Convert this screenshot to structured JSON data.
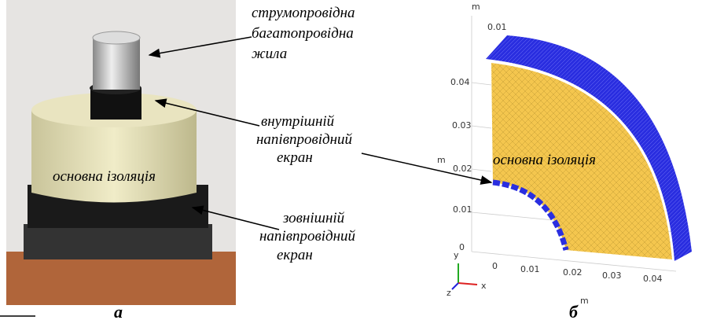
{
  "panel_a": {
    "label": "а",
    "conductor": [
      "струмопровідна",
      "багатопровідна",
      "жила"
    ],
    "inner_screen": [
      "внутрішній",
      "напівпровідний",
      "екран"
    ],
    "insulation": "основна ізоляція",
    "outer_screen": [
      "зовнішній",
      "напівпровідний",
      "екран"
    ]
  },
  "panel_b": {
    "label": "б",
    "insulation": "основна ізоляція",
    "top_axis": {
      "unit": "m",
      "ticks": [
        "0.01"
      ]
    },
    "left_axis": {
      "unit": "m",
      "ticks": [
        "0.04",
        "0.03",
        "0.02",
        "0.01",
        "0"
      ]
    },
    "bottom_axis": {
      "unit": "m",
      "ticks": [
        "0",
        "0.01",
        "0.02",
        "0.03",
        "0.04"
      ]
    },
    "triad": [
      "y",
      "x",
      "z"
    ]
  }
}
